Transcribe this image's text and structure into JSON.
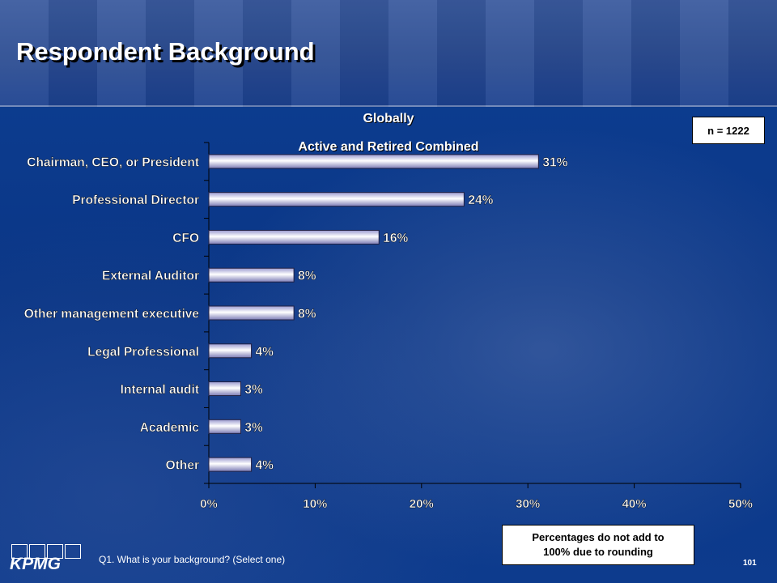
{
  "slide": {
    "title": "Respondent Background",
    "n_label": "n = 1222",
    "note_line1": "Percentages do not add to",
    "note_line2": "100% due to rounding",
    "question": "Q1. What is your background? (Select one)",
    "page_number": "101",
    "logo": "KPMG"
  },
  "chart_data": {
    "type": "bar",
    "orientation": "horizontal",
    "title": "Globally",
    "subtitle": "Active and Retired Combined",
    "categories": [
      "Chairman, CEO, or President",
      "Professional Director",
      "CFO",
      "External Auditor",
      "Other management executive",
      "Legal Professional",
      "Internal audit",
      "Academic",
      "Other"
    ],
    "values": [
      31,
      24,
      16,
      8,
      8,
      4,
      3,
      3,
      4
    ],
    "value_labels": [
      "31%",
      "24%",
      "16%",
      "8%",
      "8%",
      "4%",
      "3%",
      "3%",
      "4%"
    ],
    "xlim": [
      0,
      50
    ],
    "xticks": [
      "0%",
      "10%",
      "20%",
      "30%",
      "40%",
      "50%"
    ],
    "grid": false,
    "legend": "none",
    "colors": {
      "bar_fill": "#c8c8f0",
      "bar_shade": "#7c7cb6",
      "axis": "#000000",
      "text": "#ffffff"
    }
  }
}
